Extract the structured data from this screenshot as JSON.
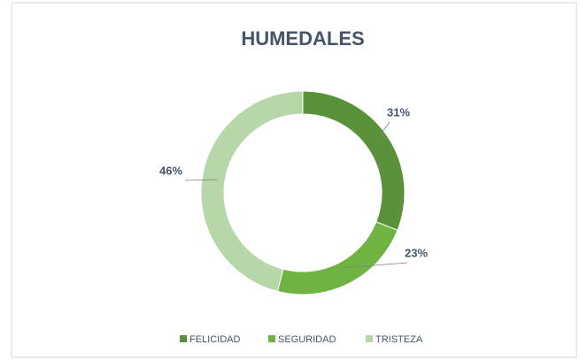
{
  "chart_data": {
    "type": "donut",
    "title": "HUMEDALES",
    "categories": [
      "FELICIDAD",
      "SEGURIDAD",
      "TRISTEZA"
    ],
    "values": [
      31,
      23,
      46
    ],
    "value_labels": [
      "31%",
      "23%",
      "46%"
    ],
    "colors": [
      "#5b9138",
      "#6fb443",
      "#b7d7a8"
    ],
    "legend": "bottom"
  }
}
